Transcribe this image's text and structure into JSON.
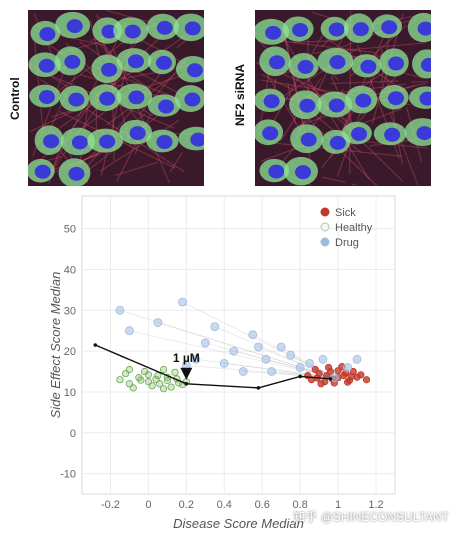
{
  "images": {
    "left_label": "Control",
    "right_label": "NF2 siRNA"
  },
  "watermark": "知乎 @SHINECONSULTANT",
  "chart_data": {
    "type": "scatter",
    "xlabel": "Disease Score Median",
    "ylabel": "Side Effect Score Median",
    "xlim": [
      -0.35,
      1.3
    ],
    "ylim": [
      -15,
      58
    ],
    "xticks": [
      -0.2,
      0,
      0.2,
      0.4,
      0.6,
      0.8,
      1,
      1.2
    ],
    "xtick_labels": [
      "-0.2",
      "0",
      "0.2",
      "0.4",
      "0.6",
      "0.8",
      "1",
      "1.2"
    ],
    "yticks": [
      -10,
      0,
      10,
      20,
      30,
      40,
      50
    ],
    "grid": true,
    "legend_position": "top-right",
    "series": [
      {
        "name": "Sick",
        "color": "#c0392b",
        "points": [
          [
            0.86,
            13
          ],
          [
            0.9,
            14.5
          ],
          [
            0.93,
            12.5
          ],
          [
            0.96,
            15
          ],
          [
            1.0,
            13.5
          ],
          [
            1.03,
            14
          ],
          [
            1.06,
            12.8
          ],
          [
            1.1,
            13.6
          ],
          [
            0.88,
            15.5
          ],
          [
            0.95,
            16
          ],
          [
            1.02,
            16.2
          ],
          [
            1.08,
            15
          ],
          [
            0.91,
            12
          ],
          [
            0.98,
            12.2
          ],
          [
            1.05,
            12.4
          ],
          [
            1.12,
            14.2
          ],
          [
            0.84,
            14
          ],
          [
            1.15,
            13
          ],
          [
            0.94,
            14
          ],
          [
            1.0,
            15.2
          ],
          [
            1.07,
            13.8
          ],
          [
            0.89,
            13.4
          ],
          [
            0.97,
            13.2
          ],
          [
            1.04,
            14.6
          ]
        ]
      },
      {
        "name": "Healthy",
        "color": "#6aa84f",
        "points": [
          [
            -0.1,
            12
          ],
          [
            -0.05,
            13.5
          ],
          [
            0.0,
            12.5
          ],
          [
            0.05,
            14
          ],
          [
            0.1,
            12.8
          ],
          [
            0.15,
            13.2
          ],
          [
            0.18,
            11.8
          ],
          [
            -0.12,
            14.5
          ],
          [
            -0.02,
            15
          ],
          [
            0.08,
            15.5
          ],
          [
            0.12,
            11.2
          ],
          [
            0.02,
            11.5
          ],
          [
            -0.08,
            11
          ],
          [
            0.06,
            12
          ],
          [
            0.14,
            14.8
          ],
          [
            -0.15,
            13
          ],
          [
            0.2,
            12.5
          ],
          [
            0.0,
            14.2
          ],
          [
            0.1,
            13.6
          ],
          [
            -0.04,
            12.9
          ],
          [
            0.16,
            12.2
          ],
          [
            0.04,
            13.1
          ],
          [
            -0.1,
            15.5
          ],
          [
            0.08,
            10.8
          ]
        ]
      },
      {
        "name": "Drug",
        "color": "#9fbbe0",
        "points": [
          [
            -0.15,
            30
          ],
          [
            -0.1,
            25
          ],
          [
            0.05,
            27
          ],
          [
            0.18,
            32
          ],
          [
            0.3,
            22
          ],
          [
            0.45,
            20
          ],
          [
            0.55,
            24
          ],
          [
            0.62,
            18
          ],
          [
            0.7,
            21
          ],
          [
            0.75,
            19
          ],
          [
            0.8,
            16
          ],
          [
            0.85,
            17
          ],
          [
            0.92,
            18
          ],
          [
            0.98,
            13.5
          ],
          [
            1.05,
            16
          ],
          [
            0.4,
            17
          ],
          [
            0.5,
            15
          ],
          [
            0.25,
            18
          ],
          [
            0.65,
            15
          ],
          [
            1.1,
            18
          ],
          [
            0.35,
            26
          ],
          [
            0.2,
            16.5
          ],
          [
            0.58,
            21
          ]
        ]
      }
    ],
    "path": {
      "points": [
        [
          -0.28,
          21.5
        ],
        [
          0.2,
          12
        ],
        [
          0.58,
          11
        ],
        [
          0.8,
          13.8
        ],
        [
          0.96,
          13.2
        ]
      ],
      "color": "#111111"
    },
    "annotation": {
      "text": "1 µM",
      "x": 0.2,
      "y": 12
    }
  }
}
